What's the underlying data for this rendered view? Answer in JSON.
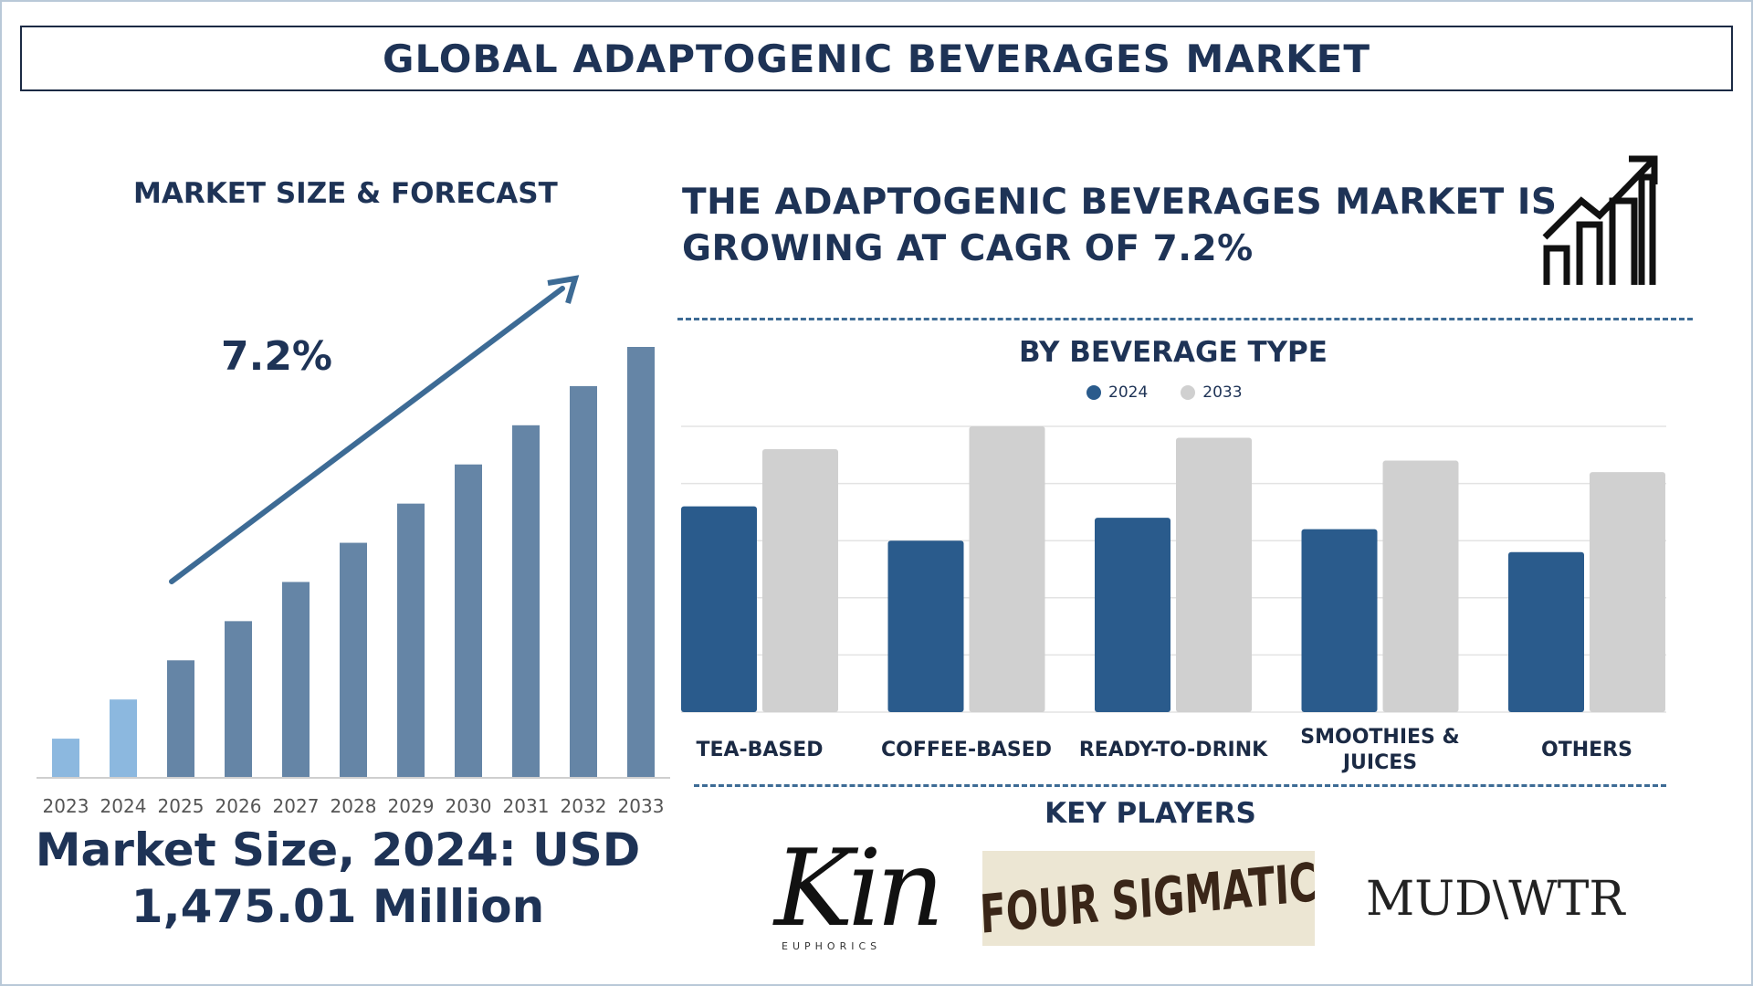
{
  "header": {
    "title": "GLOBAL ADAPTOGENIC BEVERAGES MARKET"
  },
  "left_panel": {
    "heading": "MARKET SIZE & FORECAST",
    "cagr_label": "7.2%",
    "market_size_line1": "Market Size, 2024: USD",
    "market_size_line2": "1,475.01 Million"
  },
  "right_panel": {
    "cagr_headline_line1": "THE ADAPTOGENIC BEVERAGES MARKET IS",
    "cagr_headline_line2": "GROWING AT CAGR OF 7.2%",
    "beverage_heading": "BY BEVERAGE TYPE",
    "key_players_heading": "KEY PLAYERS"
  },
  "key_players": {
    "kin": "Kin",
    "kin_sub": "EUPHORICS",
    "four_sigmatic": "FOUR SIGMATIC",
    "mud_wtr": "MUD\\WTR"
  },
  "colors": {
    "navy": "#1e3356",
    "bar_blue": "#2a5b8c",
    "bar_grey": "#d0d0d0",
    "growth_bar": "#6585a6",
    "growth_bar_light": "#8cb8df",
    "arrow": "#3d6b95"
  },
  "chart_data": [
    {
      "type": "bar",
      "title": "MARKET SIZE & FORECAST",
      "categories": [
        "2023",
        "2024",
        "2025",
        "2026",
        "2027",
        "2028",
        "2029",
        "2030",
        "2031",
        "2032",
        "2033"
      ],
      "values": [
        1.0,
        2.0,
        3.0,
        4.0,
        5.0,
        6.0,
        7.0,
        8.0,
        9.0,
        10.0,
        11.0
      ],
      "highlight": [
        "2023",
        "2024"
      ],
      "annotation": "7.2%",
      "ylim": [
        0,
        11
      ],
      "grid": false
    },
    {
      "type": "bar",
      "title": "BY BEVERAGE TYPE",
      "categories": [
        "TEA-BASED",
        "COFFEE-BASED",
        "READY-TO-DRINK",
        "SMOOTHIES & JUICES",
        "OTHERS"
      ],
      "series": [
        {
          "name": "2024",
          "values": [
            3.6,
            3.0,
            3.4,
            3.2,
            2.8
          ]
        },
        {
          "name": "2033",
          "values": [
            4.6,
            5.0,
            4.8,
            4.4,
            4.2
          ]
        }
      ],
      "ylim": [
        0,
        5
      ],
      "grid": true,
      "legend": "top-center"
    }
  ]
}
